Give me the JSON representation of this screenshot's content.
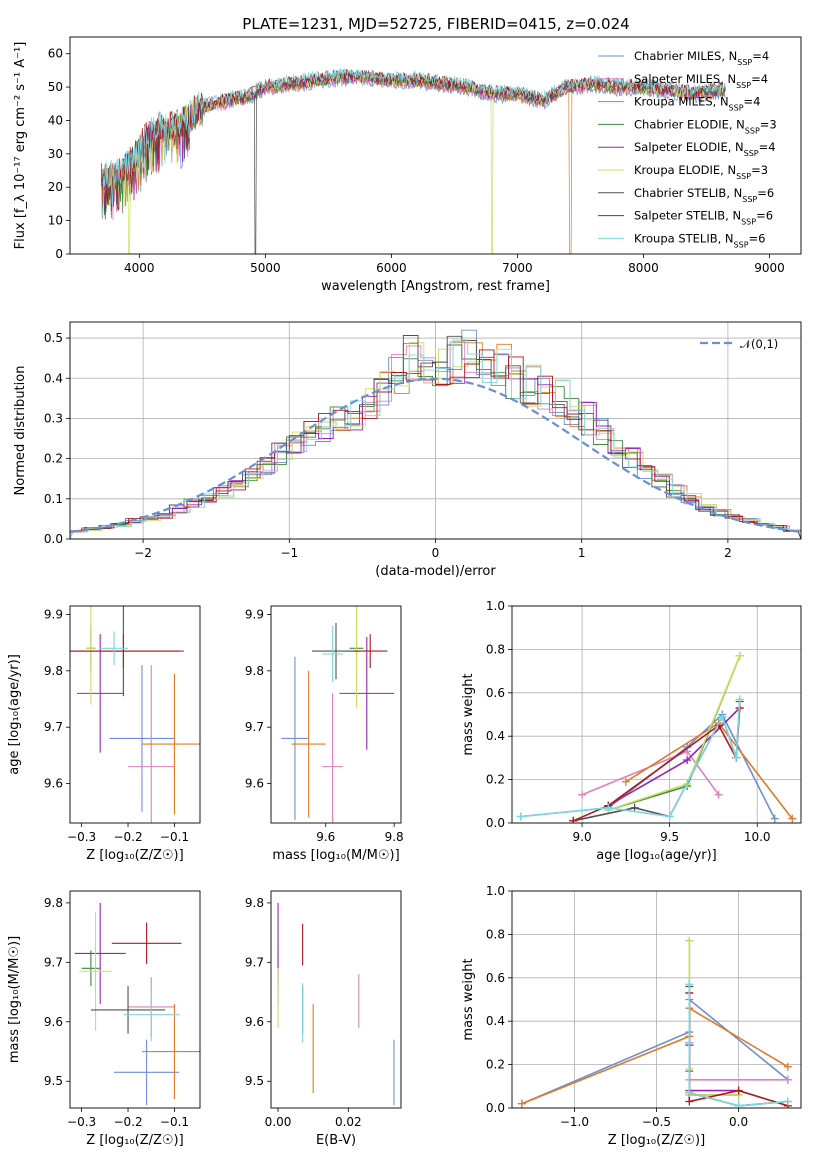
{
  "title": "PLATE=1231, MJD=52725, FIBERID=0415, z=0.024",
  "series_colors": {
    "chabrier_miles": "#6b8fd6",
    "salpeter_miles": "#e07fc0",
    "kroupa_miles": "#e07a28",
    "chabrier_elodie": "#3f8a3a",
    "salpeter_elodie": "#9a22b0",
    "kroupa_elodie": "#c8e060",
    "chabrier_stelib": "#505050",
    "salpeter_stelib": "#b01818",
    "kroupa_stelib": "#7cd7e0"
  },
  "chart_data": [
    {
      "id": "spectrum",
      "type": "line",
      "xlabel": "wavelength [Angstrom, rest frame]",
      "ylabel": "Flux [f_λ 10⁻¹⁷ erg cm⁻² s⁻¹ A⁻¹]",
      "xlim": [
        3450,
        9250
      ],
      "ylim": [
        0,
        65
      ],
      "xticks": [
        "4000",
        "5000",
        "6000",
        "7000",
        "8000",
        "9000"
      ],
      "yticks": [
        "0",
        "10",
        "20",
        "30",
        "40",
        "50",
        "60"
      ],
      "legend_position": "top-right",
      "continuum": [
        [
          3700,
          22
        ],
        [
          3850,
          24
        ],
        [
          3950,
          28
        ],
        [
          4050,
          34
        ],
        [
          4150,
          37
        ],
        [
          4300,
          38
        ],
        [
          4500,
          44
        ],
        [
          4700,
          46
        ],
        [
          4850,
          47
        ],
        [
          5000,
          50
        ],
        [
          5200,
          51
        ],
        [
          5400,
          52
        ],
        [
          5600,
          53
        ],
        [
          5800,
          53
        ],
        [
          6000,
          52
        ],
        [
          6200,
          52
        ],
        [
          6400,
          51
        ],
        [
          6600,
          50
        ],
        [
          6800,
          48
        ],
        [
          7000,
          48
        ],
        [
          7200,
          46
        ],
        [
          7400,
          50
        ],
        [
          7600,
          51
        ],
        [
          7800,
          50
        ],
        [
          8000,
          50
        ],
        [
          8200,
          49
        ],
        [
          8400,
          48
        ],
        [
          8600,
          49
        ]
      ],
      "series": [
        {
          "name": "Chabrier MILES, N_SSP=4",
          "color_key": "chabrier_miles",
          "drops": []
        },
        {
          "name": "Salpeter MILES, N_SSP=4",
          "color_key": "salpeter_miles",
          "drops": []
        },
        {
          "name": "Kroupa MILES, N_SSP=4",
          "color_key": "kroupa_miles",
          "drops": [
            7420
          ]
        },
        {
          "name": "Chabrier ELODIE, N_SSP=3",
          "color_key": "chabrier_elodie",
          "drops": []
        },
        {
          "name": "Salpeter ELODIE, N_SSP=4",
          "color_key": "salpeter_elodie",
          "drops": []
        },
        {
          "name": "Kroupa ELODIE, N_SSP=3",
          "color_key": "kroupa_elodie",
          "drops": [
            3920,
            6800
          ]
        },
        {
          "name": "Chabrier STELIB, N_SSP=6",
          "color_key": "chabrier_stelib",
          "drops": [
            4920
          ]
        },
        {
          "name": "Salpeter STELIB, N_SSP=6",
          "color_key": "salpeter_stelib",
          "drops": []
        },
        {
          "name": "Kroupa STELIB, N_SSP=6",
          "color_key": "kroupa_stelib",
          "drops": []
        }
      ]
    },
    {
      "id": "residuals",
      "type": "histogram",
      "xlabel": "(data-model)/error",
      "ylabel": "Normed distribution",
      "xlim": [
        -2.5,
        2.5
      ],
      "ylim": [
        0,
        0.54
      ],
      "xticks": [
        "−2",
        "−1",
        "0",
        "1",
        "2"
      ],
      "yticks": [
        "0.0",
        "0.1",
        "0.2",
        "0.3",
        "0.4",
        "0.5"
      ],
      "grid": true,
      "legend": "𝒩(0,1)",
      "legend_position": "top-right",
      "bin_edges_from": -2.5,
      "bin_width": 0.1,
      "base_heights": [
        0.02,
        0.025,
        0.03,
        0.035,
        0.045,
        0.05,
        0.06,
        0.075,
        0.09,
        0.1,
        0.12,
        0.14,
        0.16,
        0.18,
        0.21,
        0.24,
        0.27,
        0.28,
        0.3,
        0.31,
        0.34,
        0.38,
        0.42,
        0.45,
        0.44,
        0.43,
        0.45,
        0.46,
        0.44,
        0.43,
        0.4,
        0.38,
        0.37,
        0.35,
        0.31,
        0.3,
        0.27,
        0.23,
        0.2,
        0.17,
        0.15,
        0.12,
        0.1,
        0.08,
        0.065,
        0.055,
        0.045,
        0.035,
        0.03,
        0.02
      ],
      "normal_curve": {
        "mean": 0,
        "sigma": 1
      }
    },
    {
      "id": "age_vs_Z",
      "type": "errorbar",
      "xlabel": "Z [log₁₀(Z/Z☉)]",
      "ylabel": "age  [log₁₀(age/yr)]",
      "xlim": [
        -0.325,
        -0.045
      ],
      "ylim": [
        9.53,
        9.915
      ],
      "xticks": [
        "−0.3",
        "−0.2",
        "−0.1"
      ],
      "yticks": [
        "9.6",
        "9.7",
        "9.8",
        "9.9"
      ],
      "points": [
        {
          "color_key": "chabrier_miles",
          "x": -0.17,
          "y": 9.68,
          "xerr": 0.07,
          "yerr": 0.13
        },
        {
          "color_key": "salpeter_miles",
          "x": -0.15,
          "y": 9.63,
          "xerr": 0.05,
          "yerr": 0.18
        },
        {
          "color_key": "kroupa_miles",
          "x": -0.1,
          "y": 9.67,
          "xerr": 0.07,
          "yerr": 0.125
        },
        {
          "color_key": "chabrier_elodie",
          "x": -0.28,
          "y": 9.84,
          "xerr": 0.01,
          "yerr": 0.04
        },
        {
          "color_key": "salpeter_elodie",
          "x": -0.26,
          "y": 9.76,
          "xerr": 0.05,
          "yerr": 0.105
        },
        {
          "color_key": "kroupa_elodie",
          "x": -0.28,
          "y": 9.84,
          "xerr": 0.01,
          "yerr": 0.1
        },
        {
          "color_key": "chabrier_stelib",
          "x": -0.21,
          "y": 9.835,
          "xerr": 0.13,
          "yerr": 0.08
        },
        {
          "color_key": "salpeter_stelib",
          "x": -0.21,
          "y": 9.835,
          "xerr": 0.12,
          "yerr": 0.03
        },
        {
          "color_key": "kroupa_stelib",
          "x": -0.23,
          "y": 9.84,
          "xerr": 0.03,
          "yerr": 0.03
        }
      ]
    },
    {
      "id": "age_vs_mass",
      "type": "errorbar",
      "xlabel": "mass [log₁₀(M/M☉)]",
      "ylabel": "",
      "xlim": [
        9.44,
        9.82
      ],
      "ylim": [
        9.53,
        9.915
      ],
      "xticks": [
        "9.6",
        "9.8"
      ],
      "yticks": [
        "9.6",
        "9.7",
        "9.8",
        "9.9"
      ],
      "points": [
        {
          "color_key": "chabrier_miles",
          "x": 9.51,
          "y": 9.68,
          "xerr": 0.04,
          "yerr": 0.145
        },
        {
          "color_key": "salpeter_miles",
          "x": 9.62,
          "y": 9.63,
          "xerr": 0.03,
          "yerr": 0.13
        },
        {
          "color_key": "kroupa_miles",
          "x": 9.55,
          "y": 9.67,
          "xerr": 0.05,
          "yerr": 0.13
        },
        {
          "color_key": "chabrier_elodie",
          "x": 9.69,
          "y": 9.84,
          "xerr": 0.02,
          "yerr": 0.045
        },
        {
          "color_key": "salpeter_elodie",
          "x": 9.72,
          "y": 9.76,
          "xerr": 0.08,
          "yerr": 0.1
        },
        {
          "color_key": "kroupa_elodie",
          "x": 9.69,
          "y": 9.835,
          "xerr": 0.04,
          "yerr": 0.1
        },
        {
          "color_key": "chabrier_stelib",
          "x": 9.63,
          "y": 9.835,
          "xerr": 0.07,
          "yerr": 0.05
        },
        {
          "color_key": "salpeter_stelib",
          "x": 9.73,
          "y": 9.835,
          "xerr": 0.05,
          "yerr": 0.03
        },
        {
          "color_key": "kroupa_stelib",
          "x": 9.62,
          "y": 9.83,
          "xerr": 0.03,
          "yerr": 0.05
        }
      ]
    },
    {
      "id": "weight_vs_age",
      "type": "line",
      "xlabel": "age  [log₁₀(age/yr)]",
      "ylabel": "mass weight",
      "xlim": [
        8.6,
        10.25
      ],
      "ylim": [
        0,
        1.0
      ],
      "xticks": [
        "9.0",
        "9.5",
        "10.0"
      ],
      "yticks": [
        "0.0",
        "0.2",
        "0.4",
        "0.6",
        "0.8",
        "1.0"
      ],
      "grid": true,
      "series": [
        {
          "color_key": "chabrier_miles",
          "x": [
            8.65,
            9.15,
            9.6,
            9.8,
            10.1
          ],
          "y": [
            0.03,
            0.07,
            0.35,
            0.5,
            0.02
          ]
        },
        {
          "color_key": "salpeter_miles",
          "x": [
            9.0,
            9.6,
            9.78
          ],
          "y": [
            0.13,
            0.33,
            0.13
          ]
        },
        {
          "color_key": "kroupa_miles",
          "x": [
            9.25,
            9.78,
            10.2
          ],
          "y": [
            0.19,
            0.46,
            0.02
          ]
        },
        {
          "color_key": "chabrier_elodie",
          "x": [
            9.15,
            9.6,
            9.9
          ],
          "y": [
            0.06,
            0.17,
            0.77
          ]
        },
        {
          "color_key": "salpeter_elodie",
          "x": [
            9.15,
            9.6,
            9.9
          ],
          "y": [
            0.08,
            0.29,
            0.53
          ]
        },
        {
          "color_key": "kroupa_elodie",
          "x": [
            9.15,
            9.6,
            9.9
          ],
          "y": [
            0.06,
            0.18,
            0.77
          ]
        },
        {
          "color_key": "chabrier_stelib",
          "x": [
            8.95,
            9.3,
            9.5,
            9.8,
            9.88,
            9.9
          ],
          "y": [
            0.01,
            0.07,
            0.03,
            0.49,
            0.3,
            0.56
          ]
        },
        {
          "color_key": "salpeter_stelib",
          "x": [
            8.95,
            9.15,
            9.78,
            9.88,
            9.9
          ],
          "y": [
            0.01,
            0.08,
            0.45,
            0.3,
            0.53
          ]
        },
        {
          "color_key": "kroupa_stelib",
          "x": [
            8.65,
            9.15,
            9.5,
            9.8,
            9.88,
            9.9
          ],
          "y": [
            0.03,
            0.07,
            0.03,
            0.49,
            0.3,
            0.57
          ]
        }
      ]
    },
    {
      "id": "mass_vs_Z",
      "type": "errorbar",
      "xlabel": "Z [log₁₀(Z/Z☉)]",
      "ylabel": "mass [log₁₀(M/M☉)]",
      "xlim": [
        -0.325,
        -0.045
      ],
      "ylim": [
        9.455,
        9.82
      ],
      "xticks": [
        "−0.3",
        "−0.2",
        "−0.1"
      ],
      "yticks": [
        "9.5",
        "9.6",
        "9.7",
        "9.8"
      ],
      "points": [
        {
          "color_key": "chabrier_miles",
          "x": -0.16,
          "y": 9.515,
          "xerr": 0.07,
          "yerr": 0.055
        },
        {
          "color_key": "salpeter_miles",
          "x": -0.15,
          "y": 9.625,
          "xerr": 0.05,
          "yerr": 0.05
        },
        {
          "color_key": "kroupa_miles",
          "x": -0.1,
          "y": 9.55,
          "xerr": 0.07,
          "yerr": 0.08
        },
        {
          "color_key": "chabrier_elodie",
          "x": -0.28,
          "y": 9.69,
          "xerr": 0.02,
          "yerr": 0.03
        },
        {
          "color_key": "salpeter_elodie",
          "x": -0.26,
          "y": 9.715,
          "xerr": 0.055,
          "yerr": 0.085
        },
        {
          "color_key": "kroupa_elodie",
          "x": -0.27,
          "y": 9.685,
          "xerr": 0.035,
          "yerr": 0.1
        },
        {
          "color_key": "chabrier_stelib",
          "x": -0.2,
          "y": 9.62,
          "xerr": 0.08,
          "yerr": 0.04
        },
        {
          "color_key": "salpeter_stelib",
          "x": -0.16,
          "y": 9.732,
          "xerr": 0.075,
          "yerr": 0.035
        },
        {
          "color_key": "kroupa_stelib",
          "x": -0.15,
          "y": 9.612,
          "xerr": 0.06,
          "yerr": 0.045
        }
      ]
    },
    {
      "id": "mass_vs_EBV",
      "type": "errorbar",
      "xlabel": "E(B-V)",
      "ylabel": "",
      "xlim": [
        -0.002,
        0.035
      ],
      "ylim": [
        9.455,
        9.82
      ],
      "xticks": [
        "0.00",
        "0.02"
      ],
      "yticks": [
        "9.5",
        "9.6",
        "9.7",
        "9.8"
      ],
      "points": [
        {
          "color_key": "chabrier_miles",
          "x": 0.033,
          "y": 9.515,
          "xerr": 0,
          "yerr": 0.055
        },
        {
          "color_key": "salpeter_miles",
          "x": 0.023,
          "y": 9.635,
          "xerr": 0,
          "yerr": 0.045
        },
        {
          "color_key": "kroupa_miles",
          "x": 0.01,
          "y": 9.555,
          "xerr": 0,
          "yerr": 0.075
        },
        {
          "color_key": "chabrier_elodie",
          "x": 0.0,
          "y": 9.69,
          "xerr": 0,
          "yerr": 0.03
        },
        {
          "color_key": "salpeter_elodie",
          "x": 0.0,
          "y": 9.715,
          "xerr": 0,
          "yerr": 0.085
        },
        {
          "color_key": "kroupa_elodie",
          "x": 0.0,
          "y": 9.64,
          "xerr": 0,
          "yerr": 0.05
        },
        {
          "color_key": "chabrier_stelib",
          "x": 0.007,
          "y": 9.62,
          "xerr": 0,
          "yerr": 0.04
        },
        {
          "color_key": "salpeter_stelib",
          "x": 0.007,
          "y": 9.73,
          "xerr": 0,
          "yerr": 0.035
        },
        {
          "color_key": "kroupa_stelib",
          "x": 0.007,
          "y": 9.615,
          "xerr": 0,
          "yerr": 0.05
        }
      ]
    },
    {
      "id": "weight_vs_Z",
      "type": "line",
      "xlabel": "Z [log₁₀(Z/Z☉)]",
      "ylabel": "mass weight",
      "xlim": [
        -1.38,
        0.38
      ],
      "ylim": [
        0,
        1.0
      ],
      "xticks": [
        "−1.0",
        "−0.5",
        "0.0"
      ],
      "yticks": [
        "0.0",
        "0.2",
        "0.4",
        "0.6",
        "0.8",
        "1.0"
      ],
      "grid": true,
      "series": [
        {
          "color_key": "chabrier_miles",
          "x": [
            -1.32,
            -0.3,
            -0.3,
            0.3
          ],
          "y": [
            0.02,
            0.35,
            0.5,
            0.13
          ]
        },
        {
          "color_key": "salpeter_miles",
          "x": [
            -0.3,
            -0.3,
            0.3
          ],
          "y": [
            0.33,
            0.13,
            0.13
          ]
        },
        {
          "color_key": "kroupa_miles",
          "x": [
            -1.32,
            -0.3,
            -0.3,
            0.3
          ],
          "y": [
            0.02,
            0.33,
            0.46,
            0.19
          ]
        },
        {
          "color_key": "chabrier_elodie",
          "x": [
            -0.3,
            -0.3,
            -0.3,
            0.0
          ],
          "y": [
            0.77,
            0.17,
            0.06,
            0.06
          ]
        },
        {
          "color_key": "salpeter_elodie",
          "x": [
            -0.3,
            -0.3,
            -0.3,
            0.0
          ],
          "y": [
            0.53,
            0.29,
            0.08,
            0.08
          ]
        },
        {
          "color_key": "kroupa_elodie",
          "x": [
            -0.3,
            -0.3,
            -0.3,
            0.0
          ],
          "y": [
            0.77,
            0.18,
            0.06,
            0.06
          ]
        },
        {
          "color_key": "chabrier_stelib",
          "x": [
            -0.3,
            -0.3,
            -0.3,
            0.0,
            0.3
          ],
          "y": [
            0.56,
            0.3,
            0.07,
            0.01,
            0.03
          ]
        },
        {
          "color_key": "salpeter_stelib",
          "x": [
            -0.3,
            -0.3,
            -0.3,
            0.0,
            0.3
          ],
          "y": [
            0.53,
            0.3,
            0.03,
            0.08,
            0.01
          ]
        },
        {
          "color_key": "kroupa_stelib",
          "x": [
            -0.3,
            -0.3,
            -0.3,
            0.0,
            0.3
          ],
          "y": [
            0.57,
            0.3,
            0.07,
            0.01,
            0.03
          ]
        }
      ]
    }
  ]
}
